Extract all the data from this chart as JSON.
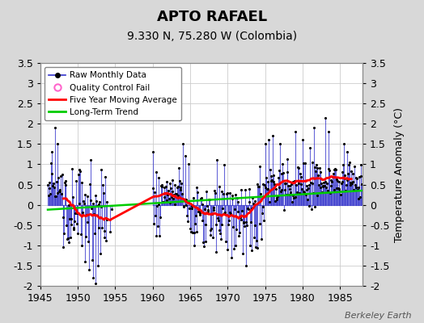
{
  "title": "APTO RAFAEL",
  "subtitle": "9.330 N, 75.280 W (Colombia)",
  "ylabel": "Temperature Anomaly (°C)",
  "watermark": "Berkeley Earth",
  "xmin": 1945,
  "xmax": 1988,
  "ymin": -2.0,
  "ymax": 3.5,
  "yticks": [
    -2,
    -1.5,
    -1,
    -0.5,
    0,
    0.5,
    1,
    1.5,
    2,
    2.5,
    3,
    3.5
  ],
  "xticks": [
    1945,
    1950,
    1955,
    1960,
    1965,
    1970,
    1975,
    1980,
    1985
  ],
  "bg_color": "#d8d8d8",
  "plot_bg_color": "#ffffff",
  "line_color_raw": "#3333cc",
  "dot_color_raw": "#000000",
  "ma_color": "#ff0000",
  "trend_color": "#00cc00",
  "qc_color": "#ff66cc",
  "legend_raw": "Raw Monthly Data",
  "legend_qc": "Quality Control Fail",
  "legend_ma": "Five Year Moving Average",
  "legend_trend": "Long-Term Trend",
  "title_fontsize": 13,
  "subtitle_fontsize": 10,
  "tick_fontsize": 9,
  "ylabel_fontsize": 9
}
